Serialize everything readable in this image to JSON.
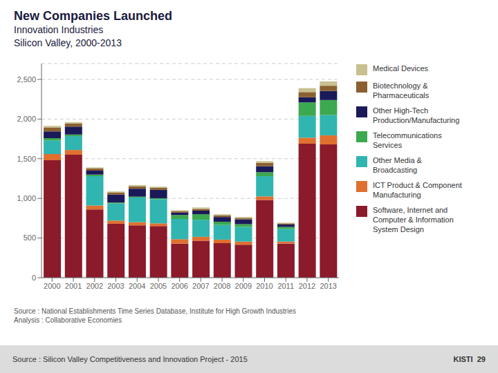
{
  "chart_data": {
    "type": "bar",
    "title": "New Companies Launched",
    "subtitle": "Innovation Industries\nSilicon Valley, 2000-2013",
    "annotations": [
      "Source : National Establishments Time Series Database, Institute for High Growth Industries\nAnalysis : Collaborative Economies",
      "Source : Silicon Valley Competitiveness and Innovation Project - 2015",
      "KISTI  29"
    ],
    "categories": [
      "2000",
      "2001",
      "2002",
      "2003",
      "2004",
      "2005",
      "2006",
      "2007",
      "2008",
      "2009",
      "2010",
      "2011",
      "2012",
      "2013"
    ],
    "series": [
      {
        "name": "Software, Internet and\nComputer & Information\nSystem Design",
        "color": "#8B1A2A",
        "values": [
          1480,
          1550,
          860,
          680,
          660,
          650,
          430,
          465,
          435,
          415,
          980,
          430,
          1690,
          1680
        ]
      },
      {
        "name": "ICT Product & Component\nManufacturing",
        "color": "#E07030",
        "values": [
          80,
          60,
          50,
          40,
          40,
          35,
          55,
          50,
          45,
          40,
          45,
          25,
          75,
          115
        ]
      },
      {
        "name": "Other Media &\nBroadcasting",
        "color": "#30B5B0",
        "values": [
          170,
          175,
          370,
          215,
          310,
          305,
          255,
          215,
          185,
          185,
          255,
          160,
          275,
          255
        ]
      },
      {
        "name": "Telecommunications\nServices",
        "color": "#3CA850",
        "values": [
          30,
          20,
          20,
          12,
          12,
          12,
          50,
          70,
          40,
          35,
          50,
          25,
          170,
          190
        ]
      },
      {
        "name": "Other High-Tech\nProduction/Manufacturing",
        "color": "#1A1A5A",
        "values": [
          85,
          100,
          50,
          100,
          100,
          105,
          30,
          45,
          60,
          60,
          75,
          30,
          65,
          115
        ]
      },
      {
        "name": "Biotechnology &\nPharmaceuticals",
        "color": "#8B6030",
        "values": [
          50,
          38,
          28,
          28,
          28,
          28,
          18,
          22,
          22,
          18,
          42,
          14,
          65,
          65
        ]
      },
      {
        "name": "Medical Devices",
        "color": "#C8C090",
        "values": [
          18,
          18,
          13,
          13,
          18,
          13,
          13,
          18,
          13,
          13,
          22,
          9,
          50,
          55
        ]
      }
    ],
    "stacked": true,
    "ylim": [
      0,
      2700
    ],
    "yticks": [
      0,
      500,
      {
        "value": 1000,
        "label": "1,000"
      },
      {
        "value": 1500,
        "label": "1,500"
      },
      {
        "value": 2000,
        "label": "2,000"
      },
      {
        "value": 2500,
        "label": "2,500"
      }
    ],
    "grid": true,
    "legend": "right"
  }
}
